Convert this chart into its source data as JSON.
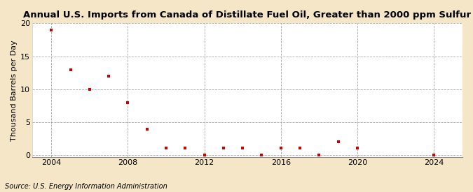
{
  "title": "Annual U.S. Imports from Canada of Distillate Fuel Oil, Greater than 2000 ppm Sulfur",
  "ylabel": "Thousand Barrels per Day",
  "source": "Source: U.S. Energy Information Administration",
  "fig_background_color": "#f5e6c8",
  "plot_background_color": "#ffffff",
  "marker_color": "#cc0000",
  "years": [
    2004,
    2005,
    2006,
    2007,
    2008,
    2009,
    2010,
    2011,
    2012,
    2013,
    2014,
    2015,
    2016,
    2017,
    2018,
    2019,
    2020,
    2024
  ],
  "values": [
    19.0,
    13.0,
    10.0,
    12.0,
    8.0,
    4.0,
    1.1,
    1.1,
    0.05,
    1.1,
    1.1,
    0.05,
    1.1,
    1.1,
    0.05,
    2.0,
    1.1,
    0.05
  ],
  "xlim": [
    2003.0,
    2025.5
  ],
  "ylim": [
    -0.3,
    20
  ],
  "yticks": [
    0,
    5,
    10,
    15,
    20
  ],
  "xticks": [
    2004,
    2008,
    2012,
    2016,
    2020,
    2024
  ],
  "grid_color": "#aaaaaa",
  "title_fontsize": 9.5,
  "label_fontsize": 8,
  "tick_fontsize": 8,
  "source_fontsize": 7
}
